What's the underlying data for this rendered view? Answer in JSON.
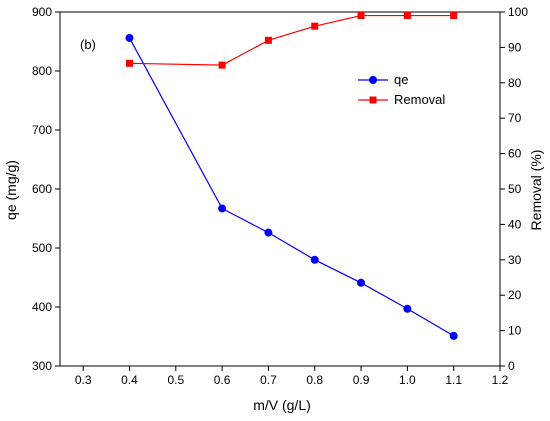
{
  "chart_data": {
    "type": "line",
    "annotation": "(b)",
    "xlabel": "m/V (g/L)",
    "ylabel_left": "qe (mg/g)",
    "ylabel_right": "Removal (%)",
    "xlim": [
      0.25,
      1.2
    ],
    "xticks": [
      "0.3",
      "0.4",
      "0.5",
      "0.6",
      "0.7",
      "0.8",
      "0.9",
      "1.0",
      "1.1",
      "1.2"
    ],
    "ylim_left": [
      300,
      900
    ],
    "yticks_left": [
      "300",
      "400",
      "500",
      "600",
      "700",
      "800",
      "900"
    ],
    "ylim_right": [
      0,
      100
    ],
    "yticks_right": [
      "0",
      "10",
      "20",
      "30",
      "40",
      "50",
      "60",
      "70",
      "80",
      "90",
      "100"
    ],
    "legend_position": "top-right",
    "series": [
      {
        "name": "qe",
        "axis": "left",
        "color": "#0000ff",
        "marker": "circle",
        "x": [
          0.4,
          0.6,
          0.7,
          0.8,
          0.9,
          1.0,
          1.1
        ],
        "y": [
          856,
          567,
          526,
          480,
          441,
          397,
          351
        ]
      },
      {
        "name": "Removal",
        "axis": "right",
        "color": "#ff0000",
        "marker": "square",
        "x": [
          0.4,
          0.6,
          0.7,
          0.8,
          0.9,
          1.0,
          1.1
        ],
        "y": [
          85.5,
          85.0,
          92.0,
          96.0,
          99.0,
          99.0,
          99.0
        ]
      }
    ]
  }
}
